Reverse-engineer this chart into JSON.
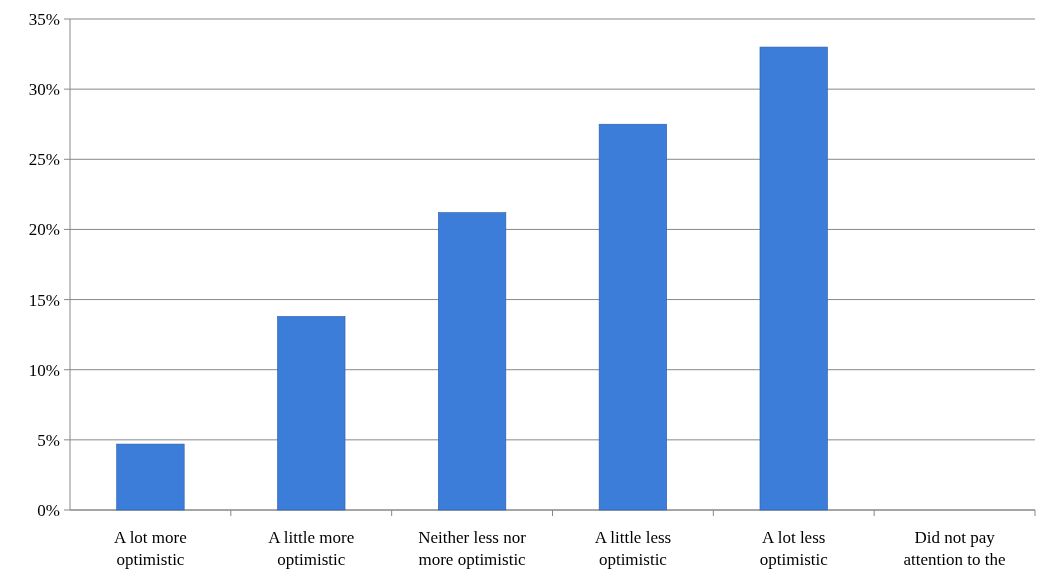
{
  "chart_data": {
    "type": "bar",
    "categories": [
      "A lot more optimistic",
      "A little more optimistic",
      "Neither less nor more optimistic",
      "A little less optimistic",
      "A lot less optimistic",
      "Did not pay attention to the"
    ],
    "values": [
      4.7,
      13.8,
      21.2,
      27.5,
      33.0,
      0
    ],
    "color": "#3b7dd8",
    "ylim": [
      0,
      35
    ],
    "yticks": [
      {
        "value": 0,
        "label": "0%"
      },
      {
        "value": 5,
        "label": "5%"
      },
      {
        "value": 10,
        "label": "10%"
      },
      {
        "value": 15,
        "label": "15%"
      },
      {
        "value": 20,
        "label": "20%"
      },
      {
        "value": 25,
        "label": "25%"
      },
      {
        "value": 30,
        "label": "30%"
      },
      {
        "value": 35,
        "label": "35%"
      }
    ],
    "grid": "y"
  }
}
